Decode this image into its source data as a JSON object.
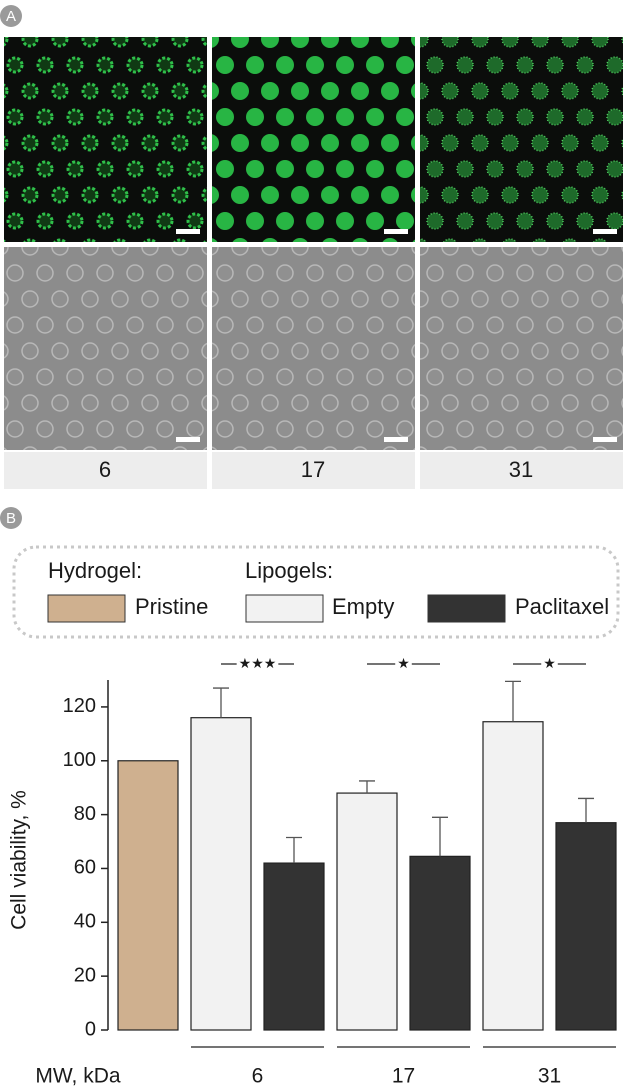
{
  "panel_a": {
    "label": "A",
    "columns": [
      "6",
      "17",
      "31"
    ]
  },
  "chart_data": {
    "type": "bar",
    "panel_label": "B",
    "ylabel": "Cell viability, %",
    "xlabel": "MW, kDa",
    "categories": [
      "6",
      "17",
      "31"
    ],
    "legend_groups": [
      "Hydrogel:",
      "Lipogels:"
    ],
    "series": [
      {
        "name": "Pristine",
        "color": "#cfb08f",
        "values": [
          100,
          null,
          null
        ],
        "errors": [
          null,
          null,
          null
        ]
      },
      {
        "name": "Empty",
        "color": "#f2f2f2",
        "values": [
          116,
          88,
          114.5
        ],
        "errors": [
          11,
          4.5,
          15
        ]
      },
      {
        "name": "Paclitaxel",
        "color": "#333333",
        "values": [
          62,
          64.5,
          77
        ],
        "errors": [
          9.5,
          14.5,
          9
        ]
      }
    ],
    "significance": [
      "★★★",
      "★",
      "★"
    ],
    "ylim": [
      0,
      130
    ],
    "yticks": [
      0,
      20,
      40,
      60,
      80,
      100,
      120
    ]
  }
}
